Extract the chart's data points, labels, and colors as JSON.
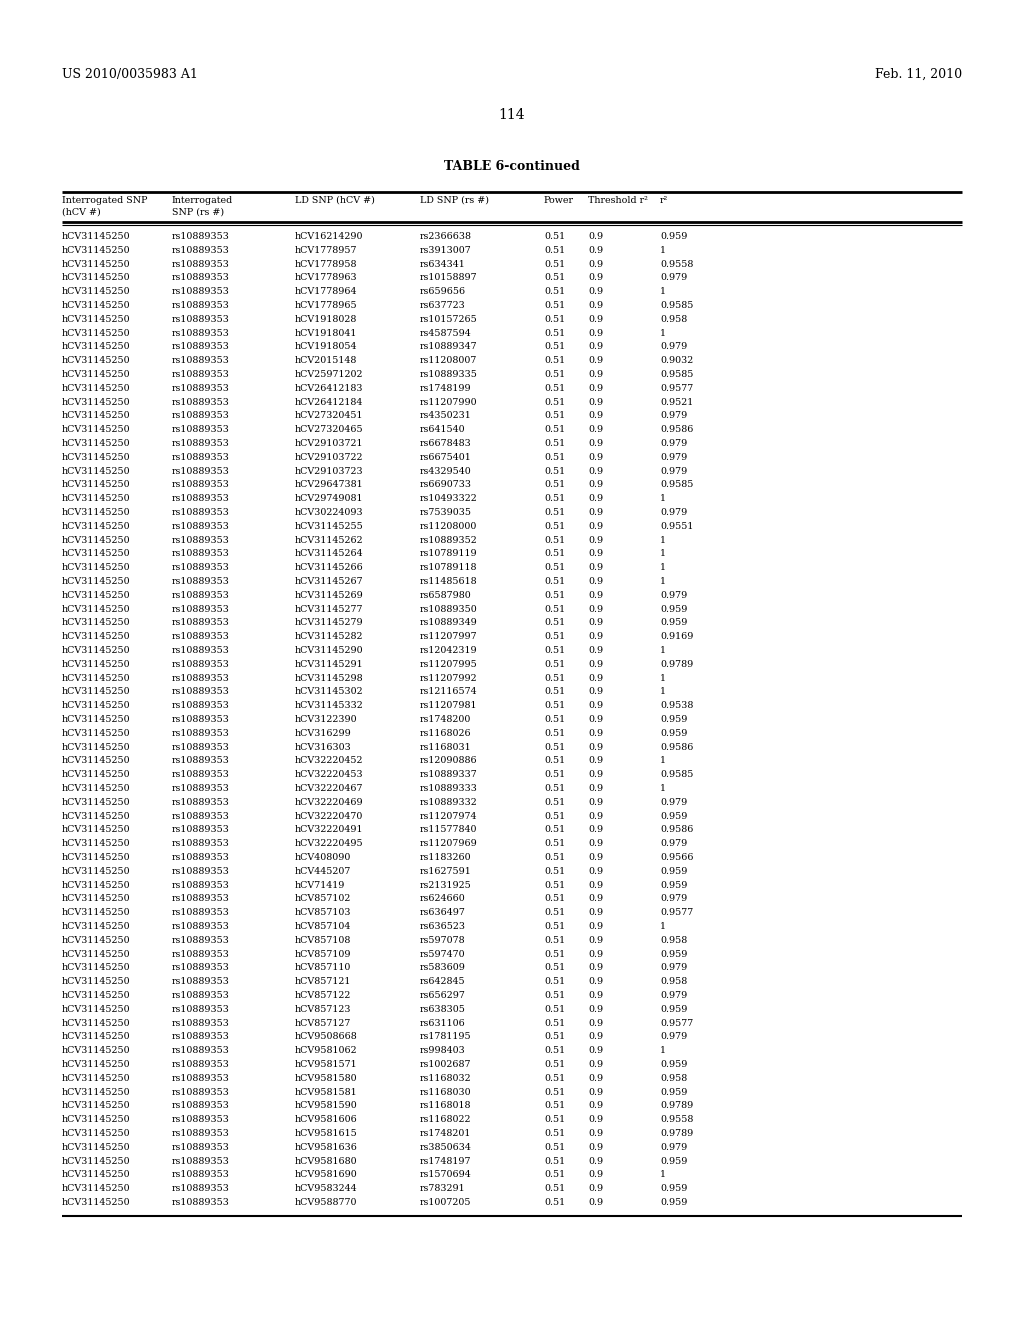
{
  "patent_number": "US 2010/0035983 A1",
  "date": "Feb. 11, 2010",
  "page_number": "114",
  "table_title": "TABLE 6-continued",
  "col_headers_line1": [
    "Interrogated SNP",
    "Interrogated",
    "LD SNP (hCV #)",
    "LD SNP (rs #)",
    "Power",
    "Threshold r²",
    "r²"
  ],
  "col_headers_line2": [
    "(hCV #)",
    "SNP (rs #)",
    "",
    "",
    "",
    "",
    ""
  ],
  "rows": [
    [
      "hCV31145250",
      "rs10889353",
      "hCV16214290",
      "rs2366638",
      "0.51",
      "0.9",
      "0.959"
    ],
    [
      "hCV31145250",
      "rs10889353",
      "hCV1778957",
      "rs3913007",
      "0.51",
      "0.9",
      "1"
    ],
    [
      "hCV31145250",
      "rs10889353",
      "hCV1778958",
      "rs634341",
      "0.51",
      "0.9",
      "0.9558"
    ],
    [
      "hCV31145250",
      "rs10889353",
      "hCV1778963",
      "rs10158897",
      "0.51",
      "0.9",
      "0.979"
    ],
    [
      "hCV31145250",
      "rs10889353",
      "hCV1778964",
      "rs659656",
      "0.51",
      "0.9",
      "1"
    ],
    [
      "hCV31145250",
      "rs10889353",
      "hCV1778965",
      "rs637723",
      "0.51",
      "0.9",
      "0.9585"
    ],
    [
      "hCV31145250",
      "rs10889353",
      "hCV1918028",
      "rs10157265",
      "0.51",
      "0.9",
      "0.958"
    ],
    [
      "hCV31145250",
      "rs10889353",
      "hCV1918041",
      "rs4587594",
      "0.51",
      "0.9",
      "1"
    ],
    [
      "hCV31145250",
      "rs10889353",
      "hCV1918054",
      "rs10889347",
      "0.51",
      "0.9",
      "0.979"
    ],
    [
      "hCV31145250",
      "rs10889353",
      "hCV2015148",
      "rs11208007",
      "0.51",
      "0.9",
      "0.9032"
    ],
    [
      "hCV31145250",
      "rs10889353",
      "hCV25971202",
      "rs10889335",
      "0.51",
      "0.9",
      "0.9585"
    ],
    [
      "hCV31145250",
      "rs10889353",
      "hCV26412183",
      "rs1748199",
      "0.51",
      "0.9",
      "0.9577"
    ],
    [
      "hCV31145250",
      "rs10889353",
      "hCV26412184",
      "rs11207990",
      "0.51",
      "0.9",
      "0.9521"
    ],
    [
      "hCV31145250",
      "rs10889353",
      "hCV27320451",
      "rs4350231",
      "0.51",
      "0.9",
      "0.979"
    ],
    [
      "hCV31145250",
      "rs10889353",
      "hCV27320465",
      "rs641540",
      "0.51",
      "0.9",
      "0.9586"
    ],
    [
      "hCV31145250",
      "rs10889353",
      "hCV29103721",
      "rs6678483",
      "0.51",
      "0.9",
      "0.979"
    ],
    [
      "hCV31145250",
      "rs10889353",
      "hCV29103722",
      "rs6675401",
      "0.51",
      "0.9",
      "0.979"
    ],
    [
      "hCV31145250",
      "rs10889353",
      "hCV29103723",
      "rs4329540",
      "0.51",
      "0.9",
      "0.979"
    ],
    [
      "hCV31145250",
      "rs10889353",
      "hCV29647381",
      "rs6690733",
      "0.51",
      "0.9",
      "0.9585"
    ],
    [
      "hCV31145250",
      "rs10889353",
      "hCV29749081",
      "rs10493322",
      "0.51",
      "0.9",
      "1"
    ],
    [
      "hCV31145250",
      "rs10889353",
      "hCV30224093",
      "rs7539035",
      "0.51",
      "0.9",
      "0.979"
    ],
    [
      "hCV31145250",
      "rs10889353",
      "hCV31145255",
      "rs11208000",
      "0.51",
      "0.9",
      "0.9551"
    ],
    [
      "hCV31145250",
      "rs10889353",
      "hCV31145262",
      "rs10889352",
      "0.51",
      "0.9",
      "1"
    ],
    [
      "hCV31145250",
      "rs10889353",
      "hCV31145264",
      "rs10789119",
      "0.51",
      "0.9",
      "1"
    ],
    [
      "hCV31145250",
      "rs10889353",
      "hCV31145266",
      "rs10789118",
      "0.51",
      "0.9",
      "1"
    ],
    [
      "hCV31145250",
      "rs10889353",
      "hCV31145267",
      "rs11485618",
      "0.51",
      "0.9",
      "1"
    ],
    [
      "hCV31145250",
      "rs10889353",
      "hCV31145269",
      "rs6587980",
      "0.51",
      "0.9",
      "0.979"
    ],
    [
      "hCV31145250",
      "rs10889353",
      "hCV31145277",
      "rs10889350",
      "0.51",
      "0.9",
      "0.959"
    ],
    [
      "hCV31145250",
      "rs10889353",
      "hCV31145279",
      "rs10889349",
      "0.51",
      "0.9",
      "0.959"
    ],
    [
      "hCV31145250",
      "rs10889353",
      "hCV31145282",
      "rs11207997",
      "0.51",
      "0.9",
      "0.9169"
    ],
    [
      "hCV31145250",
      "rs10889353",
      "hCV31145290",
      "rs12042319",
      "0.51",
      "0.9",
      "1"
    ],
    [
      "hCV31145250",
      "rs10889353",
      "hCV31145291",
      "rs11207995",
      "0.51",
      "0.9",
      "0.9789"
    ],
    [
      "hCV31145250",
      "rs10889353",
      "hCV31145298",
      "rs11207992",
      "0.51",
      "0.9",
      "1"
    ],
    [
      "hCV31145250",
      "rs10889353",
      "hCV31145302",
      "rs12116574",
      "0.51",
      "0.9",
      "1"
    ],
    [
      "hCV31145250",
      "rs10889353",
      "hCV31145332",
      "rs11207981",
      "0.51",
      "0.9",
      "0.9538"
    ],
    [
      "hCV31145250",
      "rs10889353",
      "hCV3122390",
      "rs1748200",
      "0.51",
      "0.9",
      "0.959"
    ],
    [
      "hCV31145250",
      "rs10889353",
      "hCV316299",
      "rs1168026",
      "0.51",
      "0.9",
      "0.959"
    ],
    [
      "hCV31145250",
      "rs10889353",
      "hCV316303",
      "rs1168031",
      "0.51",
      "0.9",
      "0.9586"
    ],
    [
      "hCV31145250",
      "rs10889353",
      "hCV32220452",
      "rs12090886",
      "0.51",
      "0.9",
      "1"
    ],
    [
      "hCV31145250",
      "rs10889353",
      "hCV32220453",
      "rs10889337",
      "0.51",
      "0.9",
      "0.9585"
    ],
    [
      "hCV31145250",
      "rs10889353",
      "hCV32220467",
      "rs10889333",
      "0.51",
      "0.9",
      "1"
    ],
    [
      "hCV31145250",
      "rs10889353",
      "hCV32220469",
      "rs10889332",
      "0.51",
      "0.9",
      "0.979"
    ],
    [
      "hCV31145250",
      "rs10889353",
      "hCV32220470",
      "rs11207974",
      "0.51",
      "0.9",
      "0.959"
    ],
    [
      "hCV31145250",
      "rs10889353",
      "hCV32220491",
      "rs11577840",
      "0.51",
      "0.9",
      "0.9586"
    ],
    [
      "hCV31145250",
      "rs10889353",
      "hCV32220495",
      "rs11207969",
      "0.51",
      "0.9",
      "0.979"
    ],
    [
      "hCV31145250",
      "rs10889353",
      "hCV408090",
      "rs1183260",
      "0.51",
      "0.9",
      "0.9566"
    ],
    [
      "hCV31145250",
      "rs10889353",
      "hCV445207",
      "rs1627591",
      "0.51",
      "0.9",
      "0.959"
    ],
    [
      "hCV31145250",
      "rs10889353",
      "hCV71419",
      "rs2131925",
      "0.51",
      "0.9",
      "0.959"
    ],
    [
      "hCV31145250",
      "rs10889353",
      "hCV857102",
      "rs624660",
      "0.51",
      "0.9",
      "0.979"
    ],
    [
      "hCV31145250",
      "rs10889353",
      "hCV857103",
      "rs636497",
      "0.51",
      "0.9",
      "0.9577"
    ],
    [
      "hCV31145250",
      "rs10889353",
      "hCV857104",
      "rs636523",
      "0.51",
      "0.9",
      "1"
    ],
    [
      "hCV31145250",
      "rs10889353",
      "hCV857108",
      "rs597078",
      "0.51",
      "0.9",
      "0.958"
    ],
    [
      "hCV31145250",
      "rs10889353",
      "hCV857109",
      "rs597470",
      "0.51",
      "0.9",
      "0.959"
    ],
    [
      "hCV31145250",
      "rs10889353",
      "hCV857110",
      "rs583609",
      "0.51",
      "0.9",
      "0.979"
    ],
    [
      "hCV31145250",
      "rs10889353",
      "hCV857121",
      "rs642845",
      "0.51",
      "0.9",
      "0.958"
    ],
    [
      "hCV31145250",
      "rs10889353",
      "hCV857122",
      "rs656297",
      "0.51",
      "0.9",
      "0.979"
    ],
    [
      "hCV31145250",
      "rs10889353",
      "hCV857123",
      "rs638305",
      "0.51",
      "0.9",
      "0.959"
    ],
    [
      "hCV31145250",
      "rs10889353",
      "hCV857127",
      "rs631106",
      "0.51",
      "0.9",
      "0.9577"
    ],
    [
      "hCV31145250",
      "rs10889353",
      "hCV9508668",
      "rs1781195",
      "0.51",
      "0.9",
      "0.979"
    ],
    [
      "hCV31145250",
      "rs10889353",
      "hCV9581062",
      "rs998403",
      "0.51",
      "0.9",
      "1"
    ],
    [
      "hCV31145250",
      "rs10889353",
      "hCV9581571",
      "rs1002687",
      "0.51",
      "0.9",
      "0.959"
    ],
    [
      "hCV31145250",
      "rs10889353",
      "hCV9581580",
      "rs1168032",
      "0.51",
      "0.9",
      "0.958"
    ],
    [
      "hCV31145250",
      "rs10889353",
      "hCV9581581",
      "rs1168030",
      "0.51",
      "0.9",
      "0.959"
    ],
    [
      "hCV31145250",
      "rs10889353",
      "hCV9581590",
      "rs1168018",
      "0.51",
      "0.9",
      "0.9789"
    ],
    [
      "hCV31145250",
      "rs10889353",
      "hCV9581606",
      "rs1168022",
      "0.51",
      "0.9",
      "0.9558"
    ],
    [
      "hCV31145250",
      "rs10889353",
      "hCV9581615",
      "rs1748201",
      "0.51",
      "0.9",
      "0.9789"
    ],
    [
      "hCV31145250",
      "rs10889353",
      "hCV9581636",
      "rs3850634",
      "0.51",
      "0.9",
      "0.979"
    ],
    [
      "hCV31145250",
      "rs10889353",
      "hCV9581680",
      "rs1748197",
      "0.51",
      "0.9",
      "0.959"
    ],
    [
      "hCV31145250",
      "rs10889353",
      "hCV9581690",
      "rs1570694",
      "0.51",
      "0.9",
      "1"
    ],
    [
      "hCV31145250",
      "rs10889353",
      "hCV9583244",
      "rs783291",
      "0.51",
      "0.9",
      "0.959"
    ],
    [
      "hCV31145250",
      "rs10889353",
      "hCV9588770",
      "rs1007205",
      "0.51",
      "0.9",
      "0.959"
    ]
  ],
  "bg_color": "#ffffff",
  "text_color": "#000000",
  "font_size": 6.8,
  "header_font_size": 6.8,
  "title_font_size": 9.0,
  "patent_font_size": 9.0
}
